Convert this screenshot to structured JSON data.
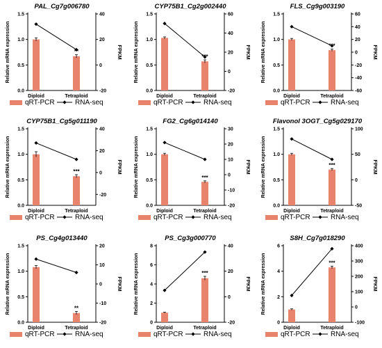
{
  "labels": {
    "ylabel": "Relative mRNA expression",
    "y2label": "FPKM",
    "legend_bar": "qRT-PCR",
    "legend_line": "RNA-seq"
  },
  "colors": {
    "bar": "#E8836D",
    "line": "#000000"
  },
  "chart_data": [
    {
      "type": "bar",
      "title": "PAL_Cg7g006780",
      "categories": [
        "Diploid",
        "Tetraploid"
      ],
      "series": [
        {
          "name": "qRT-PCR",
          "axis": "left",
          "values": [
            1.0,
            0.67
          ],
          "error": [
            0.03,
            0.03
          ]
        },
        {
          "name": "RNA-seq",
          "axis": "right",
          "type": "line",
          "values": [
            32,
            12
          ]
        }
      ],
      "ylim": [
        0,
        1.5
      ],
      "yticks": [
        "0.0",
        "0.5",
        "1.0",
        "1.5"
      ],
      "y2lim": [
        -20,
        40
      ],
      "y2ticks": [
        "-20",
        "0",
        "20",
        "40"
      ],
      "significance": [
        "",
        "**"
      ]
    },
    {
      "type": "bar",
      "title": "CYP75B1_Cg2g002440",
      "categories": [
        "Diploid",
        "Tetraploid"
      ],
      "series": [
        {
          "name": "qRT-PCR",
          "axis": "left",
          "values": [
            1.03,
            0.57
          ],
          "error": [
            0.02,
            0.03
          ]
        },
        {
          "name": "RNA-seq",
          "axis": "right",
          "type": "line",
          "values": [
            50,
            15
          ]
        }
      ],
      "ylim": [
        0,
        1.5
      ],
      "yticks": [
        "0.0",
        "0.5",
        "1.0",
        "1.5"
      ],
      "y2lim": [
        -20,
        60
      ],
      "y2ticks": [
        "-20",
        "0",
        "20",
        "40",
        "60"
      ],
      "significance": [
        "",
        "***"
      ]
    },
    {
      "type": "bar",
      "title": "FLS_Cg9g003190",
      "categories": [
        "Diploid",
        "Tetraploid"
      ],
      "series": [
        {
          "name": "qRT-PCR",
          "axis": "left",
          "values": [
            1.0,
            0.79
          ],
          "error": [
            0.02,
            0.02
          ]
        },
        {
          "name": "RNA-seq",
          "axis": "right",
          "type": "line",
          "values": [
            40,
            10
          ]
        }
      ],
      "ylim": [
        0,
        1.5
      ],
      "yticks": [
        "0.0",
        "0.5",
        "1.0",
        "1.5"
      ],
      "y2lim": [
        -60,
        60
      ],
      "y2ticks": [
        "-60",
        "-40",
        "-20",
        "0",
        "20",
        "40",
        "60"
      ],
      "significance": [
        "",
        "***"
      ]
    },
    {
      "type": "bar",
      "title": "CYP75B1_Cg5g011190",
      "categories": [
        "Diploid",
        "Tetraploid"
      ],
      "series": [
        {
          "name": "qRT-PCR",
          "axis": "left",
          "values": [
            1.0,
            0.57
          ],
          "error": [
            0.05,
            0.03
          ]
        },
        {
          "name": "RNA-seq",
          "axis": "right",
          "type": "line",
          "values": [
            27,
            12
          ]
        }
      ],
      "ylim": [
        0,
        1.5
      ],
      "yticks": [
        "0.0",
        "0.5",
        "1.0",
        "1.5"
      ],
      "y2lim": [
        -30,
        40
      ],
      "y2ticks": [
        "-20",
        "0",
        "20",
        "40"
      ],
      "significance": [
        "",
        "***"
      ]
    },
    {
      "type": "bar",
      "title": "FG2_Cg6g014140",
      "categories": [
        "Diploid",
        "Tetraploid"
      ],
      "series": [
        {
          "name": "qRT-PCR",
          "axis": "left",
          "values": [
            1.0,
            0.46
          ],
          "error": [
            0.02,
            0.02
          ]
        },
        {
          "name": "RNA-seq",
          "axis": "right",
          "type": "line",
          "values": [
            21,
            10
          ]
        }
      ],
      "ylim": [
        0,
        1.5
      ],
      "yticks": [
        "0.0",
        "0.5",
        "1.0",
        "1.5"
      ],
      "y2lim": [
        -20,
        30
      ],
      "y2ticks": [
        "-20",
        "-10",
        "0",
        "10",
        "20",
        "30"
      ],
      "significance": [
        "",
        "***"
      ]
    },
    {
      "type": "bar",
      "title": "Flavonol 3OGT_Cg5g029170",
      "categories": [
        "Diploid",
        "Tetraploid"
      ],
      "series": [
        {
          "name": "qRT-PCR",
          "axis": "left",
          "values": [
            1.0,
            0.7
          ],
          "error": [
            0.02,
            0.02
          ]
        },
        {
          "name": "RNA-seq",
          "axis": "right",
          "type": "line",
          "values": [
            80,
            40
          ]
        }
      ],
      "ylim": [
        0,
        1.5
      ],
      "yticks": [
        "0.0",
        "0.5",
        "1.0",
        "1.5"
      ],
      "y2lim": [
        -50,
        100
      ],
      "y2ticks": [
        "-50",
        "0",
        "50",
        "100"
      ],
      "significance": [
        "",
        "***"
      ]
    },
    {
      "type": "bar",
      "title": "PS_Cg4g013440",
      "categories": [
        "Diploid",
        "Tetraploid"
      ],
      "series": [
        {
          "name": "qRT-PCR",
          "axis": "left",
          "values": [
            1.08,
            0.18
          ],
          "error": [
            0.03,
            0.03
          ]
        },
        {
          "name": "RNA-seq",
          "axis": "right",
          "type": "line",
          "values": [
            13,
            6
          ]
        }
      ],
      "ylim": [
        0,
        1.5
      ],
      "yticks": [
        "0.0",
        "0.5",
        "1.0",
        "1.5"
      ],
      "y2lim": [
        -20,
        20
      ],
      "y2ticks": [
        "-20",
        "-10",
        "0",
        "10",
        "20"
      ],
      "significance": [
        "",
        "**"
      ]
    },
    {
      "type": "bar",
      "title": "PS_Cg3g000770",
      "categories": [
        "Diploid",
        "Tetraploid"
      ],
      "series": [
        {
          "name": "qRT-PCR",
          "axis": "left",
          "values": [
            1.0,
            4.6
          ],
          "error": [
            0.05,
            0.2
          ]
        },
        {
          "name": "RNA-seq",
          "axis": "right",
          "type": "line",
          "values": [
            5,
            35
          ]
        }
      ],
      "ylim": [
        0,
        8
      ],
      "yticks": [
        "0",
        "2",
        "4",
        "6",
        "8"
      ],
      "y2lim": [
        -20,
        40
      ],
      "y2ticks": [
        "-20",
        "0",
        "20",
        "40"
      ],
      "significance": [
        "",
        "***"
      ]
    },
    {
      "type": "bar",
      "title": "S8H_Cg7g018290",
      "categories": [
        "Diploid",
        "Tetraploid"
      ],
      "series": [
        {
          "name": "qRT-PCR",
          "axis": "left",
          "values": [
            1.0,
            4.3
          ],
          "error": [
            0.05,
            0.1
          ]
        },
        {
          "name": "RNA-seq",
          "axis": "right",
          "type": "line",
          "values": [
            75,
            380
          ]
        }
      ],
      "ylim": [
        0,
        6
      ],
      "yticks": [
        "0",
        "2",
        "4",
        "6"
      ],
      "y2lim": [
        -100,
        400
      ],
      "y2ticks": [
        "-100",
        "0",
        "100",
        "200",
        "300",
        "400"
      ],
      "significance": [
        "",
        "***"
      ]
    }
  ]
}
